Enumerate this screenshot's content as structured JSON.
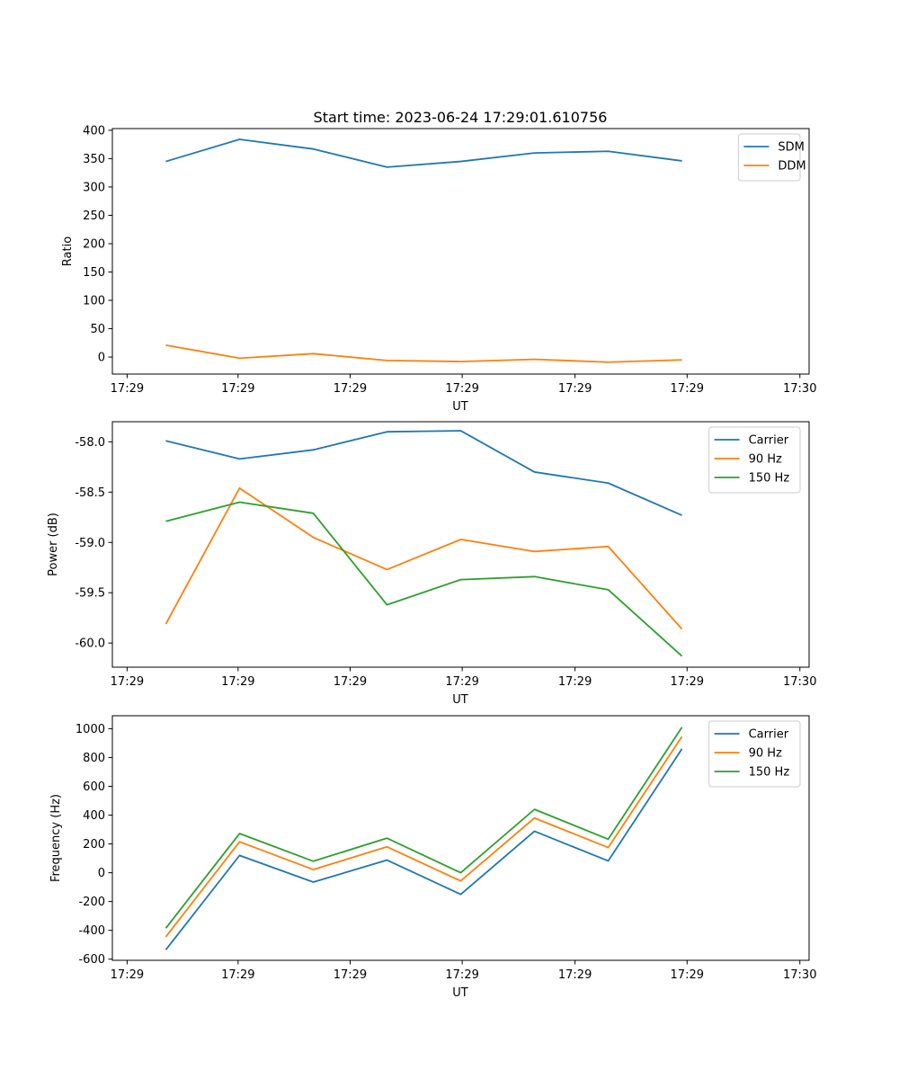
{
  "figure": {
    "title": "Start time: 2023-06-24 17:29:01.610756"
  },
  "chart_data": [
    {
      "type": "line",
      "title": "Start time: 2023-06-24 17:29:01.610756",
      "xlabel": "UT",
      "ylabel": "Ratio",
      "x": [
        0,
        1,
        2,
        3,
        4,
        5,
        6,
        7
      ],
      "x_ticks": [
        "17:29",
        "17:29",
        "17:29",
        "17:29",
        "17:29",
        "17:29",
        "17:30"
      ],
      "y_ticks": [
        "0",
        "50",
        "100",
        "150",
        "200",
        "250",
        "300",
        "350",
        "400"
      ],
      "ylim": [
        -30,
        403
      ],
      "grid": false,
      "legend_position": "top-right",
      "series": [
        {
          "name": "SDM",
          "color": "#1f77b4",
          "values": [
            345,
            384,
            367,
            335,
            345,
            360,
            363,
            346
          ]
        },
        {
          "name": "DDM",
          "color": "#ff7f0e",
          "values": [
            21,
            -2,
            6,
            -6,
            -8,
            -4,
            -9,
            -5
          ]
        }
      ]
    },
    {
      "type": "line",
      "title": "",
      "xlabel": "UT",
      "ylabel": "Power (dB)",
      "x": [
        0,
        1,
        2,
        3,
        4,
        5,
        6,
        7
      ],
      "x_ticks": [
        "17:29",
        "17:29",
        "17:29",
        "17:29",
        "17:29",
        "17:29",
        "17:30"
      ],
      "y_ticks": [
        "-60.0",
        "-59.5",
        "-59.0",
        "-58.5",
        "-58.0"
      ],
      "ylim": [
        -60.24,
        -57.8
      ],
      "grid": false,
      "legend_position": "top-right",
      "series": [
        {
          "name": "Carrier",
          "color": "#1f77b4",
          "values": [
            -57.99,
            -58.17,
            -58.08,
            -57.9,
            -57.89,
            -58.3,
            -58.41,
            -58.73
          ]
        },
        {
          "name": "90 Hz",
          "color": "#ff7f0e",
          "values": [
            -59.81,
            -58.46,
            -58.95,
            -59.27,
            -58.97,
            -59.09,
            -59.04,
            -59.86
          ]
        },
        {
          "name": "150 Hz",
          "color": "#2ca02c",
          "values": [
            -58.79,
            -58.6,
            -58.71,
            -59.62,
            -59.37,
            -59.34,
            -59.47,
            -60.13
          ]
        }
      ]
    },
    {
      "type": "line",
      "title": "",
      "xlabel": "UT",
      "ylabel": "Frequency (Hz)",
      "x": [
        0,
        1,
        2,
        3,
        4,
        5,
        6,
        7
      ],
      "x_ticks": [
        "17:29",
        "17:29",
        "17:29",
        "17:29",
        "17:29",
        "17:29",
        "17:30"
      ],
      "y_ticks": [
        "-600",
        "-400",
        "-200",
        "0",
        "200",
        "400",
        "600",
        "800",
        "1000"
      ],
      "ylim": [
        -608,
        1090
      ],
      "grid": false,
      "legend_position": "top-right",
      "series": [
        {
          "name": "Carrier",
          "color": "#1f77b4",
          "values": [
            -535,
            120,
            -65,
            88,
            -150,
            288,
            82,
            860
          ]
        },
        {
          "name": "90 Hz",
          "color": "#ff7f0e",
          "values": [
            -445,
            215,
            22,
            180,
            -57,
            380,
            175,
            945
          ]
        },
        {
          "name": "150 Hz",
          "color": "#2ca02c",
          "values": [
            -385,
            272,
            80,
            240,
            0,
            440,
            233,
            1010
          ]
        }
      ]
    }
  ]
}
